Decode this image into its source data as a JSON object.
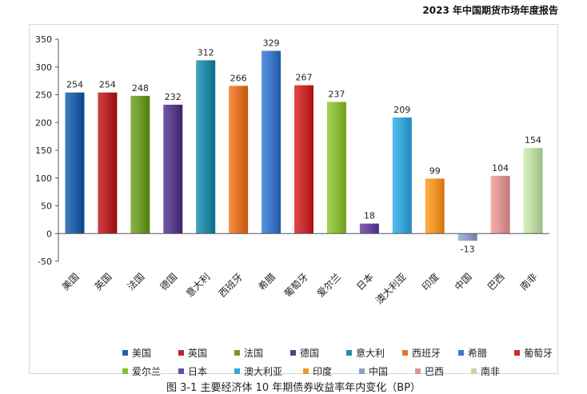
{
  "header": {
    "report_title": "2023 年中国期货市场年度报告"
  },
  "caption": "图 3-1  主要经济体 10 年期债券收益率年内变化（BP）",
  "chart_data": {
    "type": "bar",
    "title": "",
    "xlabel": "",
    "ylabel": "",
    "ylim": [
      -50,
      350
    ],
    "yticks": [
      -50,
      0,
      50,
      100,
      150,
      200,
      250,
      300,
      350
    ],
    "ytick_labels": [
      "-50",
      "0",
      "50",
      "100",
      "150",
      "200",
      "250",
      "300",
      "350"
    ],
    "grid": false,
    "legend_position": "bottom",
    "categories": [
      "美国",
      "英国",
      "法国",
      "德国",
      "意大利",
      "西班牙",
      "希腊",
      "葡萄牙",
      "爱尔兰",
      "日本",
      "澳大利亚",
      "印度",
      "中国",
      "巴西",
      "南非"
    ],
    "values": [
      254,
      254,
      248,
      232,
      312,
      266,
      329,
      267,
      237,
      18,
      209,
      99,
      -13,
      104,
      154
    ],
    "data_labels": [
      "254",
      "254",
      "248",
      "232",
      "312",
      "266",
      "329",
      "267",
      "237",
      "18",
      "209",
      "99",
      "-13",
      "104",
      "154"
    ],
    "colors": [
      "#2563a8",
      "#b8282b",
      "#6f9a2e",
      "#5b3f8a",
      "#268aa6",
      "#e0742a",
      "#3d78c6",
      "#c92e2e",
      "#8cbb3c",
      "#6a4aa0",
      "#3aa6d6",
      "#f2952d",
      "#8e9fc8",
      "#dd9696",
      "#bcd9a4"
    ]
  }
}
